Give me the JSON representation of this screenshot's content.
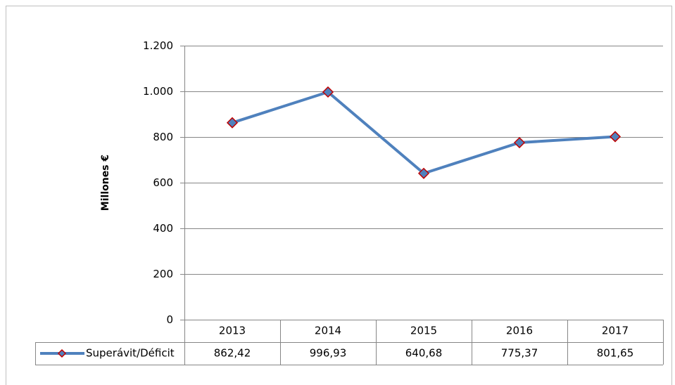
{
  "chart_data": {
    "type": "line",
    "ylabel": "Millones €",
    "categories": [
      "2013",
      "2014",
      "2015",
      "2016",
      "2017"
    ],
    "series": [
      {
        "name": "Superávit/Déficit",
        "color": "#4f81bd",
        "marker_edge": "#c00000",
        "values": [
          862.42,
          996.93,
          640.68,
          775.37,
          801.65
        ],
        "value_labels": [
          "862,42",
          "996,93",
          "640,68",
          "775,37",
          "801,65"
        ]
      }
    ],
    "ylim": [
      0,
      1200
    ],
    "yticks": [
      0,
      200,
      400,
      600,
      800,
      {
        "value": 1000,
        "label": "1.000"
      },
      {
        "value": 1200,
        "label": "1.200"
      }
    ],
    "grid": true
  }
}
